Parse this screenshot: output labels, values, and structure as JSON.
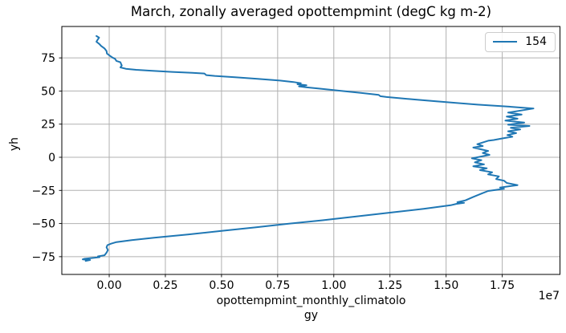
{
  "chart_data": {
    "type": "line",
    "title": "March, zonally averaged opottempmint (degC kg m-2)",
    "ylabel": "yh",
    "xlabel_lines": [
      "opottempmint_monthly_climatolo",
      "gy"
    ],
    "x_offset_text": "1e7",
    "xlim": [
      -0.211,
      2.007
    ],
    "ylim": [
      -88.4,
      98.7
    ],
    "grid": true,
    "grid_color": "#b0b0b0",
    "line_color": "#1f77b4",
    "legend_position": "upper right",
    "xticks": {
      "values": [
        0,
        0.25,
        0.5,
        0.75,
        1.0,
        1.25,
        1.5,
        1.75
      ],
      "labels": [
        "0.00",
        "0.25",
        "0.50",
        "0.75",
        "1.00",
        "1.25",
        "1.50",
        "1.75"
      ]
    },
    "yticks": {
      "values": [
        75,
        50,
        25,
        0,
        -25,
        -50,
        -75
      ],
      "labels": [
        "75",
        "50",
        "25",
        "0",
        "−25",
        "−50",
        "−75"
      ]
    },
    "series": [
      {
        "name": "154",
        "color": "#1f77b4",
        "points": [
          [
            -0.057,
            91.5
          ],
          [
            -0.045,
            90.3
          ],
          [
            -0.051,
            88.9
          ],
          [
            -0.057,
            87.2
          ],
          [
            -0.044,
            85.5
          ],
          [
            -0.036,
            84.0
          ],
          [
            -0.02,
            82.0
          ],
          [
            -0.012,
            80.2
          ],
          [
            -0.01,
            78.3
          ],
          [
            0.002,
            76.7
          ],
          [
            0.014,
            75.3
          ],
          [
            0.026,
            74.3
          ],
          [
            0.032,
            72.7
          ],
          [
            0.05,
            71.7
          ],
          [
            0.053,
            70.3
          ],
          [
            0.056,
            69.3
          ],
          [
            0.05,
            67.8
          ],
          [
            0.074,
            66.8
          ],
          [
            0.12,
            66.0
          ],
          [
            0.193,
            65.2
          ],
          [
            0.28,
            64.4
          ],
          [
            0.37,
            63.7
          ],
          [
            0.424,
            63.2
          ],
          [
            0.432,
            62.0
          ],
          [
            0.47,
            61.4
          ],
          [
            0.56,
            60.4
          ],
          [
            0.66,
            59.2
          ],
          [
            0.76,
            57.9
          ],
          [
            0.82,
            56.8
          ],
          [
            0.853,
            55.9
          ],
          [
            0.838,
            55.1
          ],
          [
            0.878,
            54.3
          ],
          [
            0.845,
            53.5
          ],
          [
            0.872,
            52.9
          ],
          [
            0.93,
            51.9
          ],
          [
            1.02,
            50.3
          ],
          [
            1.12,
            48.6
          ],
          [
            1.2,
            47.1
          ],
          [
            1.207,
            46.1
          ],
          [
            1.235,
            45.5
          ],
          [
            1.36,
            43.6
          ],
          [
            1.5,
            41.6
          ],
          [
            1.64,
            39.7
          ],
          [
            1.78,
            38.2
          ],
          [
            1.889,
            36.8
          ],
          [
            1.776,
            33.7
          ],
          [
            1.836,
            32.3
          ],
          [
            1.77,
            30.7
          ],
          [
            1.818,
            29.1
          ],
          [
            1.764,
            27.7
          ],
          [
            1.848,
            26.2
          ],
          [
            1.776,
            24.6
          ],
          [
            1.871,
            23.6
          ],
          [
            1.788,
            22.2
          ],
          [
            1.83,
            21.0
          ],
          [
            1.776,
            19.6
          ],
          [
            1.812,
            18.2
          ],
          [
            1.773,
            16.8
          ],
          [
            1.795,
            15.5
          ],
          [
            1.748,
            14.2
          ],
          [
            1.712,
            13.0
          ],
          [
            1.687,
            12.5
          ],
          [
            1.639,
            9.9
          ],
          [
            1.663,
            8.5
          ],
          [
            1.621,
            7.3
          ],
          [
            1.687,
            4.8
          ],
          [
            1.663,
            3.2
          ],
          [
            1.693,
            1.8
          ],
          [
            1.615,
            -0.8
          ],
          [
            1.657,
            -2.2
          ],
          [
            1.628,
            -3.8
          ],
          [
            1.669,
            -5.3
          ],
          [
            1.621,
            -6.8
          ],
          [
            1.681,
            -8.3
          ],
          [
            1.651,
            -9.7
          ],
          [
            1.705,
            -11.3
          ],
          [
            1.687,
            -12.9
          ],
          [
            1.735,
            -14.4
          ],
          [
            1.723,
            -16.4
          ],
          [
            1.758,
            -17.7
          ],
          [
            1.77,
            -19.4
          ],
          [
            1.818,
            -21.0
          ],
          [
            1.74,
            -22.8
          ],
          [
            1.758,
            -23.8
          ],
          [
            1.687,
            -25.4
          ],
          [
            1.657,
            -27.4
          ],
          [
            1.621,
            -29.9
          ],
          [
            1.586,
            -32.5
          ],
          [
            1.55,
            -33.9
          ],
          [
            1.58,
            -34.4
          ],
          [
            1.545,
            -35.2
          ],
          [
            1.52,
            -36.2
          ],
          [
            1.4,
            -38.9
          ],
          [
            1.25,
            -41.8
          ],
          [
            1.1,
            -44.7
          ],
          [
            0.95,
            -47.5
          ],
          [
            0.8,
            -50.1
          ],
          [
            0.65,
            -52.9
          ],
          [
            0.5,
            -55.5
          ],
          [
            0.35,
            -58.3
          ],
          [
            0.2,
            -60.7
          ],
          [
            0.1,
            -62.5
          ],
          [
            0.032,
            -64.0
          ],
          [
            0.008,
            -65.2
          ],
          [
            -0.008,
            -66.3
          ],
          [
            -0.012,
            -68.0
          ],
          [
            -0.006,
            -70.0
          ],
          [
            -0.012,
            -72.0
          ],
          [
            -0.021,
            -73.9
          ],
          [
            -0.05,
            -74.8
          ],
          [
            -0.043,
            -75.4
          ],
          [
            -0.075,
            -76.0
          ],
          [
            -0.11,
            -76.6
          ],
          [
            -0.118,
            -77.0
          ],
          [
            -0.085,
            -77.5
          ],
          [
            -0.105,
            -78.2
          ]
        ]
      }
    ]
  }
}
